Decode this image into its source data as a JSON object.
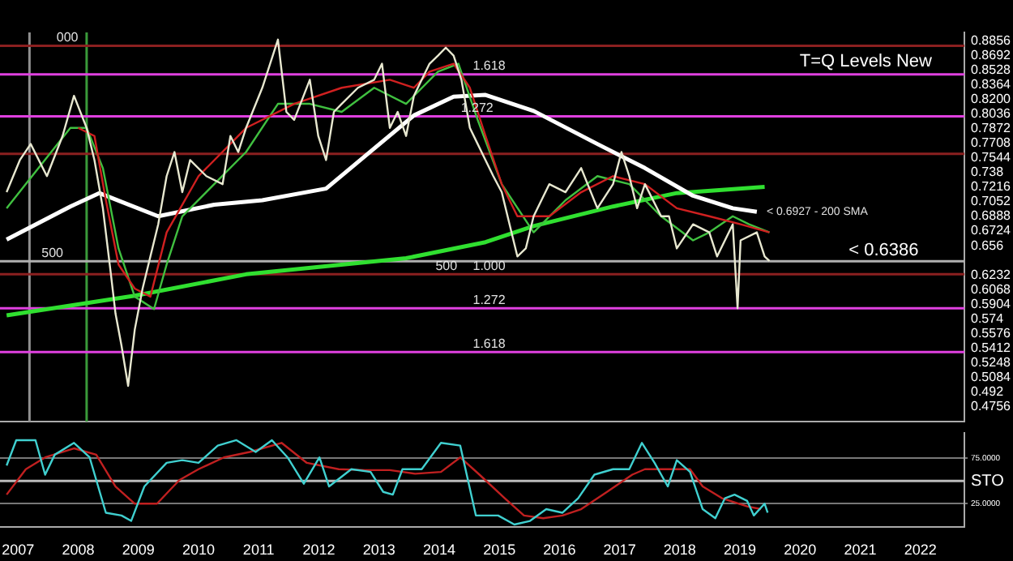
{
  "chart_data": [
    {
      "type": "line",
      "title": "T=Q Levels New",
      "annotations": [
        {
          "text": "500",
          "x": 2007.75,
          "y": 0.6386
        },
        {
          "text": "500",
          "x": 2014.3,
          "y": 0.624
        },
        {
          "text": "000",
          "x": 2008.0,
          "y": 0.88
        },
        {
          "text": "1.618",
          "x": 2015.1,
          "y": 0.848
        },
        {
          "text": "1.272",
          "x": 2014.9,
          "y": 0.801
        },
        {
          "text": "1.000",
          "x": 2015.1,
          "y": 0.624
        },
        {
          "text": "1.272",
          "x": 2015.1,
          "y": 0.586
        },
        {
          "text": "1.618",
          "x": 2015.1,
          "y": 0.537
        }
      ],
      "xlim": [
        2006.7,
        2022.73
      ],
      "ylim": [
        0.459,
        0.895
      ],
      "yticks": [
        0.8856,
        0.8692,
        0.8528,
        0.8364,
        {
          "value": 0.82,
          "label": "0.8200"
        },
        0.8036,
        0.7872,
        0.7708,
        0.7544,
        0.738,
        0.7216,
        0.7052,
        0.6888,
        0.6724,
        0.656,
        0.6232,
        0.6068,
        0.5904,
        0.574,
        0.5576,
        0.5412,
        0.5248,
        0.5084,
        0.492,
        0.4756
      ],
      "tick_labels": "y",
      "grid": false,
      "legend": false,
      "marker": "none",
      "ref_lines": [
        {
          "axis": "x",
          "value": 2007.19,
          "color": "#909090"
        },
        {
          "axis": "x",
          "value": 2008.14,
          "color": "#3a9a3a"
        },
        {
          "axis": "y",
          "value": 0.88,
          "color": "#8b2020"
        },
        {
          "axis": "y",
          "value": 0.848,
          "color": "#e040e0"
        },
        {
          "axis": "y",
          "value": 0.801,
          "color": "#e040e0"
        },
        {
          "axis": "y",
          "value": 0.759,
          "color": "#8b2020"
        },
        {
          "axis": "y",
          "value": 0.6386,
          "label": "< 0.6386",
          "color": "#b0b0b0"
        },
        {
          "axis": "y",
          "value": 0.624,
          "color": "#8b2020"
        },
        {
          "axis": "y",
          "value": 0.586,
          "color": "#e040e0"
        },
        {
          "axis": "y",
          "value": 0.537,
          "color": "#e040e0"
        }
      ],
      "series": [
        {
          "color": "#e8e8d0",
          "x": [
            2006.81,
            2007.03,
            2007.21,
            2007.48,
            2007.74,
            2007.93,
            2008.14,
            2008.27,
            2008.41,
            2008.54,
            2008.62,
            2008.72,
            2008.83,
            2008.94,
            2009.07,
            2009.2,
            2009.33,
            2009.47,
            2009.6,
            2009.73,
            2009.86,
            2010.13,
            2010.4,
            2010.53,
            2010.66,
            2010.79,
            2011.06,
            2011.19,
            2011.32,
            2011.46,
            2011.59,
            2011.85,
            2011.99,
            2012.12,
            2012.25,
            2012.38,
            2012.65,
            2012.92,
            2013.05,
            2013.18,
            2013.31,
            2013.45,
            2013.58,
            2013.84,
            2013.98,
            2014.11,
            2014.24,
            2014.37,
            2014.51,
            2014.64,
            2014.77,
            2014.9,
            2015.04,
            2015.17,
            2015.3,
            2015.44,
            2015.57,
            2015.83,
            2016.1,
            2016.36,
            2016.63,
            2016.89,
            2017.03,
            2017.16,
            2017.29,
            2017.42,
            2017.69,
            2017.82,
            2017.95,
            2018.22,
            2018.49,
            2018.62,
            2018.88,
            2018.96,
            2019.01,
            2019.28,
            2019.41,
            2019.49
          ],
          "values": [
            0.716,
            0.752,
            0.77,
            0.734,
            0.779,
            0.824,
            0.788,
            0.752,
            0.698,
            0.626,
            0.58,
            0.544,
            0.499,
            0.562,
            0.608,
            0.644,
            0.68,
            0.734,
            0.761,
            0.716,
            0.752,
            0.734,
            0.725,
            0.779,
            0.761,
            0.788,
            0.833,
            0.86,
            0.887,
            0.806,
            0.797,
            0.842,
            0.779,
            0.752,
            0.806,
            0.815,
            0.833,
            0.842,
            0.86,
            0.788,
            0.806,
            0.779,
            0.824,
            0.86,
            0.869,
            0.878,
            0.869,
            0.842,
            0.788,
            0.77,
            0.752,
            0.734,
            0.716,
            0.68,
            0.644,
            0.653,
            0.689,
            0.725,
            0.716,
            0.743,
            0.698,
            0.725,
            0.761,
            0.734,
            0.698,
            0.725,
            0.689,
            0.689,
            0.653,
            0.68,
            0.671,
            0.644,
            0.68,
            0.586,
            0.662,
            0.671,
            0.644,
            0.639
          ]
        },
        {
          "color": "#d02020",
          "x": [
            2008.0,
            2008.27,
            2008.46,
            2008.67,
            2008.94,
            2009.2,
            2009.47,
            2010.0,
            2010.79,
            2011.59,
            2012.38,
            2013.18,
            2013.58,
            2013.84,
            2014.24,
            2014.51,
            2014.77,
            2015.04,
            2015.3,
            2015.83,
            2016.36,
            2016.89,
            2017.42,
            2017.95,
            2018.49,
            2019.01,
            2019.49
          ],
          "values": [
            0.788,
            0.779,
            0.707,
            0.635,
            0.608,
            0.599,
            0.671,
            0.734,
            0.788,
            0.815,
            0.833,
            0.842,
            0.833,
            0.851,
            0.86,
            0.833,
            0.779,
            0.725,
            0.689,
            0.689,
            0.716,
            0.734,
            0.725,
            0.698,
            0.689,
            0.68,
            0.671
          ]
        },
        {
          "color": "#40c040",
          "x": [
            2006.81,
            2007.34,
            2007.87,
            2008.14,
            2008.41,
            2008.67,
            2008.94,
            2009.26,
            2009.47,
            2009.73,
            2010.26,
            2010.79,
            2011.32,
            2011.85,
            2012.38,
            2012.92,
            2013.45,
            2013.98,
            2014.32,
            2014.64,
            2015.04,
            2015.57,
            2016.1,
            2016.63,
            2017.16,
            2017.69,
            2018.22,
            2018.49,
            2018.88,
            2019.15,
            2019.49
          ],
          "values": [
            0.698,
            0.743,
            0.788,
            0.788,
            0.743,
            0.653,
            0.599,
            0.585,
            0.635,
            0.689,
            0.725,
            0.761,
            0.815,
            0.815,
            0.806,
            0.833,
            0.815,
            0.851,
            0.86,
            0.797,
            0.725,
            0.671,
            0.707,
            0.734,
            0.725,
            0.689,
            0.662,
            0.671,
            0.689,
            0.68,
            0.671
          ]
        },
        {
          "name": "< 0.6927 - 200 SMA",
          "color": "#ffffff",
          "x": [
            2006.81,
            2007.87,
            2008.35,
            2009.33,
            2010.26,
            2011.06,
            2012.12,
            2012.92,
            2013.58,
            2014.24,
            2014.77,
            2015.57,
            2016.63,
            2017.42,
            2018.22,
            2018.88,
            2019.28
          ],
          "values": [
            0.663,
            0.7,
            0.715,
            0.689,
            0.702,
            0.707,
            0.72,
            0.765,
            0.802,
            0.823,
            0.825,
            0.807,
            0.77,
            0.743,
            0.712,
            0.698,
            0.694
          ]
        },
        {
          "color": "#30e030",
          "x": [
            2006.81,
            2008.94,
            2010.79,
            2013.45,
            2014.77,
            2015.57,
            2016.89,
            2017.95,
            2019.41
          ],
          "values": [
            0.578,
            0.6,
            0.624,
            0.642,
            0.66,
            0.678,
            0.7,
            0.715,
            0.722
          ]
        }
      ]
    },
    {
      "type": "line",
      "ylabel": "STO",
      "xlim": [
        2006.7,
        2022.73
      ],
      "ylim": [
        -1,
        103
      ],
      "xticks": [
        2007,
        2008,
        2009,
        2010,
        2011,
        2012,
        2013,
        2014,
        2015,
        2016,
        2017,
        2018,
        2019,
        2020,
        2021,
        2022
      ],
      "yticks": [
        {
          "value": 75,
          "label": "75.0000"
        },
        {
          "value": 25,
          "label": "25.0000"
        }
      ],
      "ref_lines": [
        {
          "axis": "y",
          "value": 50,
          "color": "#bbbbbb"
        }
      ],
      "grid": "y",
      "legend": false,
      "marker": "none",
      "series": [
        {
          "color": "#40d0d0",
          "x": [
            2006.81,
            2006.97,
            2007.29,
            2007.45,
            2007.61,
            2007.93,
            2008.19,
            2008.46,
            2008.72,
            2008.88,
            2009.1,
            2009.47,
            2009.73,
            2010.0,
            2010.32,
            2010.63,
            2010.95,
            2011.22,
            2011.48,
            2011.75,
            2012.01,
            2012.17,
            2012.54,
            2012.86,
            2013.07,
            2013.23,
            2013.39,
            2013.71,
            2014.03,
            2014.35,
            2014.61,
            2014.98,
            2015.25,
            2015.51,
            2015.78,
            2016.05,
            2016.31,
            2016.58,
            2016.89,
            2017.16,
            2017.37,
            2017.58,
            2017.8,
            2017.95,
            2018.17,
            2018.38,
            2018.59,
            2018.75,
            2018.91,
            2019.12,
            2019.23,
            2019.41,
            2019.46
          ],
          "values": [
            67,
            95,
            95,
            57,
            79,
            92,
            76,
            15,
            12,
            6,
            44,
            70,
            73,
            70,
            89,
            95,
            82,
            95,
            76,
            47,
            76,
            44,
            63,
            60,
            38,
            35,
            63,
            63,
            92,
            89,
            12,
            12,
            2,
            6,
            19,
            15,
            31,
            57,
            63,
            63,
            92,
            70,
            44,
            73,
            60,
            19,
            9,
            31,
            35,
            28,
            12,
            25,
            15
          ]
        },
        {
          "color": "#c02020",
          "x": [
            2006.81,
            2007.13,
            2007.45,
            2007.93,
            2008.3,
            2008.62,
            2008.94,
            2009.31,
            2009.68,
            2010.0,
            2010.42,
            2010.85,
            2011.38,
            2011.8,
            2012.33,
            2012.76,
            2013.18,
            2013.6,
            2014.03,
            2014.35,
            2014.67,
            2015.09,
            2015.41,
            2015.73,
            2016.05,
            2016.36,
            2016.79,
            2017.21,
            2017.42,
            2017.85,
            2018.17,
            2018.38,
            2018.7,
            2019.12,
            2019.35
          ],
          "values": [
            35,
            63,
            76,
            86,
            79,
            44,
            25,
            25,
            51,
            63,
            76,
            82,
            92,
            70,
            63,
            62,
            62,
            58,
            60,
            76,
            57,
            31,
            12,
            9,
            12,
            19,
            38,
            57,
            63,
            63,
            63,
            44,
            31,
            22,
            19
          ]
        }
      ]
    }
  ]
}
